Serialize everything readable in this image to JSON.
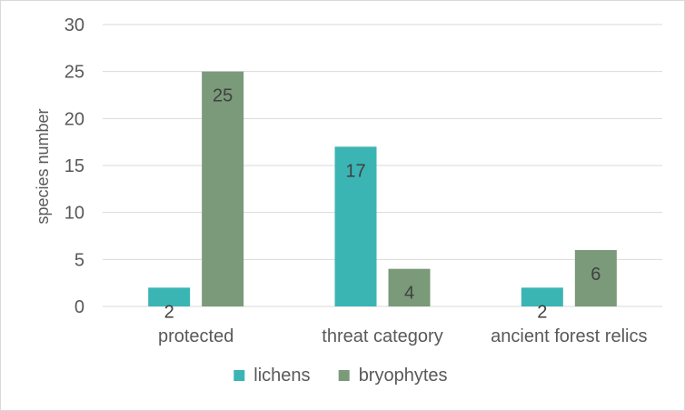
{
  "chart_data": {
    "type": "bar",
    "title": "",
    "xlabel": "",
    "ylabel": "species number",
    "ylim": [
      0,
      30
    ],
    "yticks": [
      0,
      5,
      10,
      15,
      20,
      25,
      30
    ],
    "grid": true,
    "legend_position": "bottom",
    "categories": [
      "protected",
      "threat category",
      "ancient forest relics"
    ],
    "series": [
      {
        "name": "lichens",
        "color": "#3bb4b4",
        "values": [
          2,
          17,
          2
        ]
      },
      {
        "name": "bryophytes",
        "color": "#7a9a7a",
        "values": [
          25,
          4,
          6
        ]
      }
    ]
  }
}
